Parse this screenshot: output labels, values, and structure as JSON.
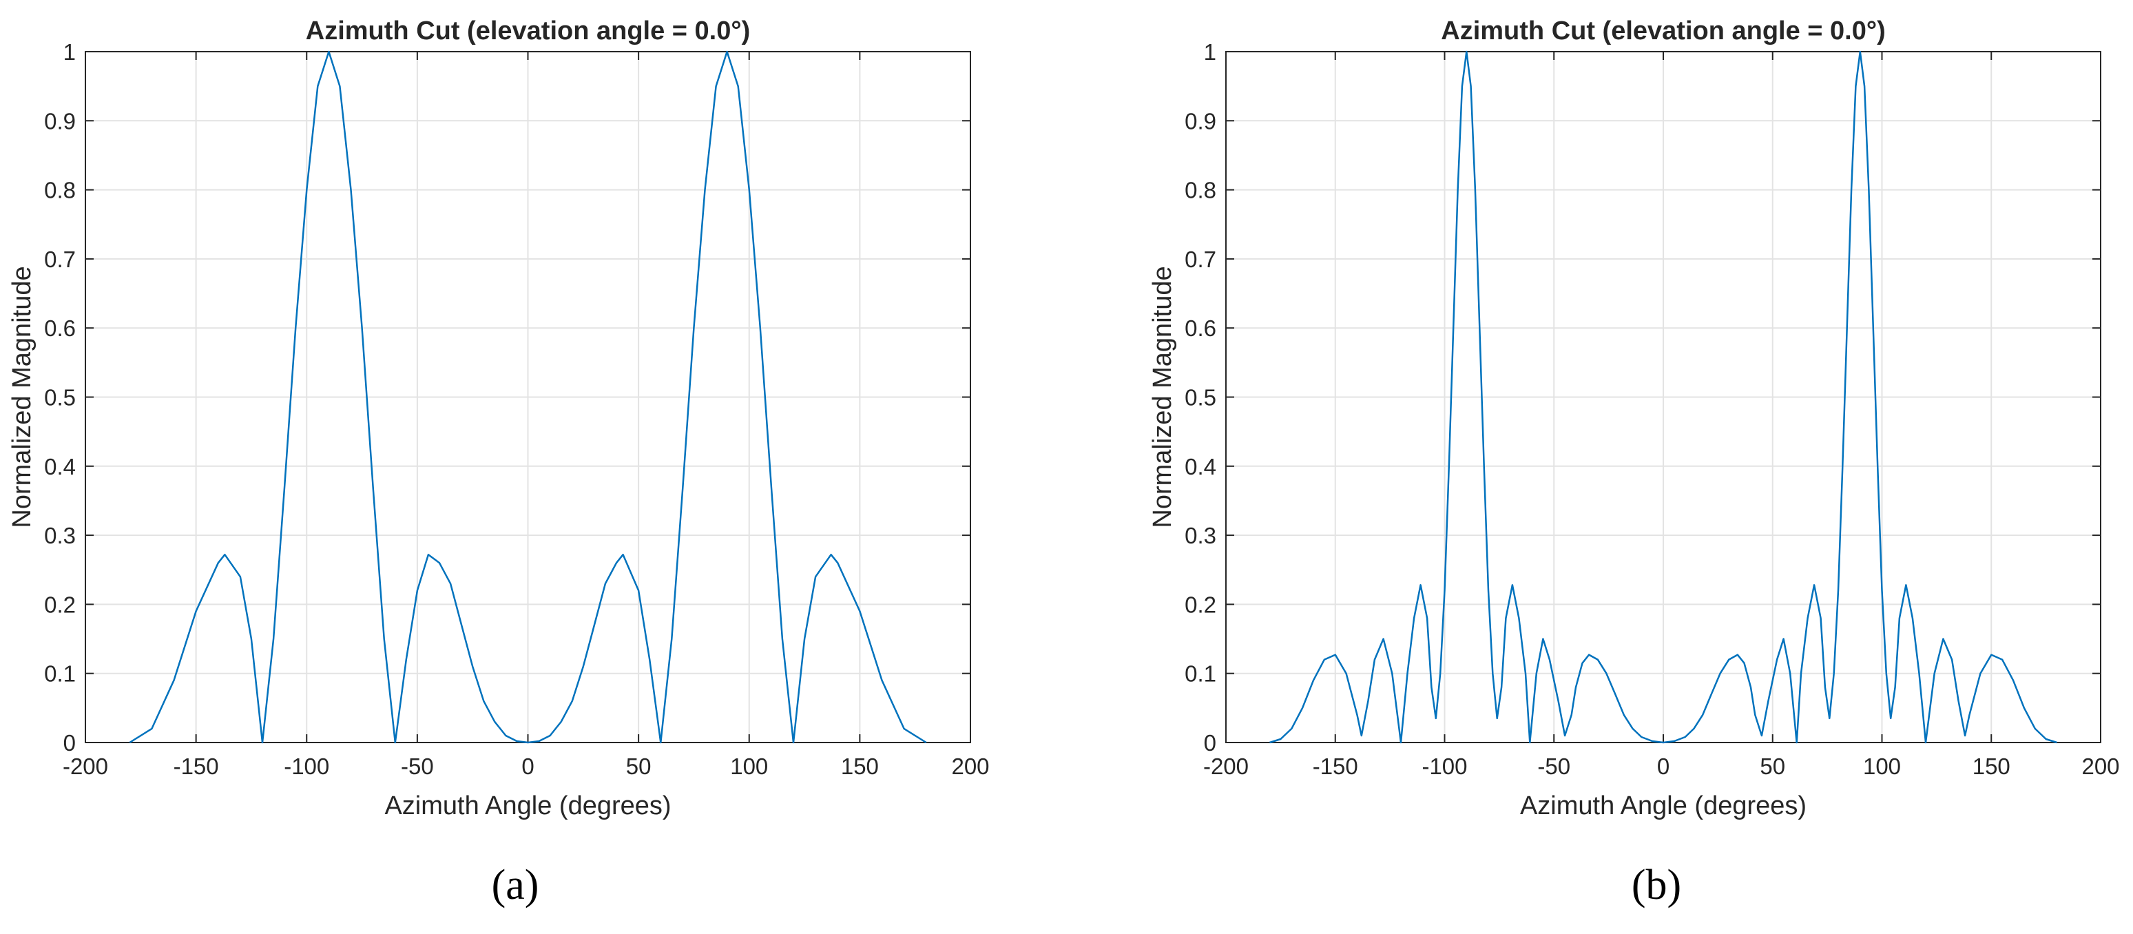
{
  "chart_data": [
    {
      "type": "line",
      "title": "Azimuth Cut (elevation angle = 0.0°)",
      "xlabel": "Azimuth Angle (degrees)",
      "ylabel": "Normalized Magnitude",
      "xlim": [
        -200,
        200
      ],
      "ylim": [
        0,
        1
      ],
      "xticks": [
        -200,
        -150,
        -100,
        -50,
        0,
        50,
        100,
        150,
        200
      ],
      "yticks": [
        0,
        0.1,
        0.2,
        0.3,
        0.4,
        0.5,
        0.6,
        0.7,
        0.8,
        0.9,
        1
      ],
      "grid": true,
      "line_color": "#0072BD",
      "series": [
        {
          "x": [
            -180,
            -170,
            -160,
            -150,
            -140,
            -137,
            -130,
            -125,
            -120,
            -115,
            -110,
            -105,
            -100,
            -95,
            -90,
            -85,
            -80,
            -75,
            -70,
            -65,
            -60,
            -55,
            -50,
            -45,
            -40,
            -35,
            -30,
            -25,
            -20,
            -15,
            -10,
            -5,
            0,
            5,
            10,
            15,
            20,
            25,
            30,
            35,
            40,
            43,
            50,
            55,
            60,
            65,
            70,
            75,
            80,
            85,
            90,
            95,
            100,
            105,
            110,
            115,
            120,
            125,
            130,
            137,
            140,
            150,
            160,
            170,
            180
          ],
          "y": [
            0,
            0.02,
            0.09,
            0.19,
            0.26,
            0.272,
            0.24,
            0.15,
            0,
            0.15,
            0.37,
            0.6,
            0.8,
            0.95,
            1,
            0.95,
            0.8,
            0.6,
            0.37,
            0.15,
            0,
            0.12,
            0.22,
            0.272,
            0.26,
            0.23,
            0.17,
            0.11,
            0.06,
            0.03,
            0.01,
            0.002,
            0,
            0.002,
            0.01,
            0.03,
            0.06,
            0.11,
            0.17,
            0.23,
            0.26,
            0.272,
            0.22,
            0.12,
            0,
            0.15,
            0.37,
            0.6,
            0.8,
            0.95,
            1,
            0.95,
            0.8,
            0.6,
            0.37,
            0.15,
            0,
            0.15,
            0.24,
            0.272,
            0.26,
            0.19,
            0.09,
            0.02,
            0
          ]
        }
      ],
      "caption": "(a)"
    },
    {
      "type": "line",
      "title": "Azimuth Cut (elevation angle = 0.0°)",
      "xlabel": "Azimuth Angle (degrees)",
      "ylabel": "Normalized Magnitude",
      "xlim": [
        -200,
        200
      ],
      "ylim": [
        0,
        1
      ],
      "xticks": [
        -200,
        -150,
        -100,
        -50,
        0,
        50,
        100,
        150,
        200
      ],
      "yticks": [
        0,
        0.1,
        0.2,
        0.3,
        0.4,
        0.5,
        0.6,
        0.7,
        0.8,
        0.9,
        1
      ],
      "grid": true,
      "line_color": "#0072BD",
      "series": [
        {
          "x": [
            -180,
            -175,
            -170,
            -165,
            -160,
            -155,
            -150,
            -145,
            -140,
            -138,
            -135,
            -132,
            -128,
            -124,
            -120,
            -117,
            -114,
            -111,
            -108,
            -106,
            -104,
            -102,
            -100,
            -98,
            -96,
            -94,
            -92,
            -90,
            -88,
            -86,
            -84,
            -82,
            -80,
            -78,
            -76,
            -74,
            -72,
            -69,
            -66,
            -63,
            -61,
            -58,
            -55,
            -52,
            -48,
            -45,
            -42,
            -40,
            -37,
            -34,
            -30,
            -26,
            -22,
            -18,
            -14,
            -10,
            -5,
            0,
            5,
            10,
            14,
            18,
            22,
            26,
            30,
            34,
            37,
            40,
            42,
            45,
            48,
            52,
            55,
            58,
            61,
            63,
            66,
            69,
            72,
            74,
            76,
            78,
            80,
            82,
            84,
            86,
            88,
            90,
            92,
            94,
            96,
            98,
            100,
            102,
            104,
            106,
            108,
            111,
            114,
            117,
            120,
            124,
            128,
            132,
            135,
            138,
            140,
            145,
            150,
            155,
            160,
            165,
            170,
            175,
            180
          ],
          "y": [
            0,
            0.005,
            0.02,
            0.05,
            0.09,
            0.12,
            0.127,
            0.1,
            0.04,
            0.01,
            0.06,
            0.12,
            0.15,
            0.1,
            0,
            0.1,
            0.18,
            0.228,
            0.18,
            0.08,
            0.035,
            0.1,
            0.22,
            0.4,
            0.6,
            0.8,
            0.95,
            1,
            0.95,
            0.8,
            0.6,
            0.4,
            0.22,
            0.1,
            0.035,
            0.08,
            0.18,
            0.228,
            0.18,
            0.1,
            0,
            0.1,
            0.15,
            0.12,
            0.06,
            0.01,
            0.04,
            0.08,
            0.115,
            0.127,
            0.12,
            0.1,
            0.07,
            0.04,
            0.02,
            0.008,
            0.002,
            0,
            0.002,
            0.008,
            0.02,
            0.04,
            0.07,
            0.1,
            0.12,
            0.127,
            0.115,
            0.08,
            0.04,
            0.01,
            0.06,
            0.12,
            0.15,
            0.1,
            0,
            0.1,
            0.18,
            0.228,
            0.18,
            0.08,
            0.035,
            0.1,
            0.22,
            0.4,
            0.6,
            0.8,
            0.95,
            1,
            0.95,
            0.8,
            0.6,
            0.4,
            0.22,
            0.1,
            0.035,
            0.08,
            0.18,
            0.228,
            0.18,
            0.1,
            0,
            0.1,
            0.15,
            0.12,
            0.06,
            0.01,
            0.04,
            0.1,
            0.127,
            0.12,
            0.09,
            0.05,
            0.02,
            0.005,
            0
          ]
        }
      ],
      "caption": "(b)"
    }
  ]
}
